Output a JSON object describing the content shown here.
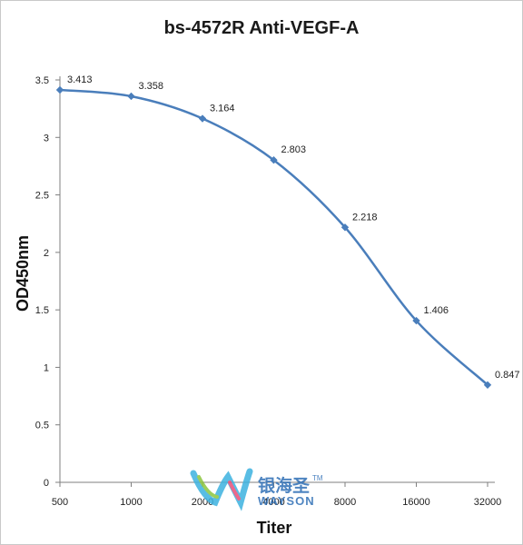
{
  "chart_data": {
    "type": "line",
    "title": "bs-4572R Anti-VEGF-A",
    "xlabel": "Titer",
    "ylabel": "OD450nm",
    "categories": [
      "500",
      "1000",
      "2000",
      "4000",
      "8000",
      "16000",
      "32000"
    ],
    "series": [
      {
        "values": [
          3.413,
          3.358,
          3.164,
          2.803,
          2.218,
          1.406,
          0.847
        ],
        "data_labels": [
          "3.413",
          "3.358",
          "3.164",
          "2.803",
          "2.218",
          "1.406",
          "0.847"
        ],
        "color": "#4a7ebb"
      }
    ],
    "yticks": [
      "0",
      "0.5",
      "1",
      "1.5",
      "2",
      "2.5",
      "3",
      "3.5"
    ],
    "ylim": [
      0,
      3.5
    ],
    "x_scale": "log2 categorical",
    "grid": false,
    "legend": "none"
  },
  "watermark": {
    "text_cn": "银海圣",
    "text_en": "WAYSON",
    "tm": "TM",
    "colors": [
      "#2f6fb6",
      "#3db2e0",
      "#8cc63f",
      "#e94e77"
    ]
  }
}
